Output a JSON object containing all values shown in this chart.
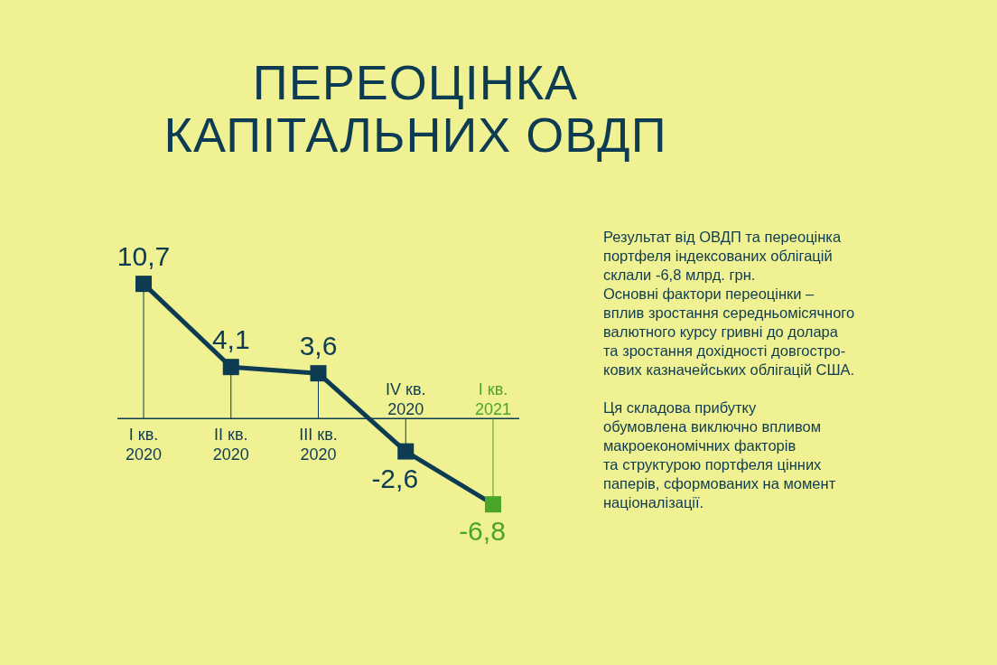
{
  "chart_data": {
    "type": "line",
    "title": "ПЕРЕОЦІНКА\nКАПІТАЛЬНИХ ОВДП",
    "categories": [
      "I кв. 2020",
      "II кв. 2020",
      "III кв. 2020",
      "IV кв. 2020",
      "I кв. 2021"
    ],
    "series": [
      {
        "color": "#0d3b52",
        "values": [
          10.7,
          4.1,
          3.6,
          -2.6,
          -6.8
        ],
        "value_labels": [
          "10,7",
          "4,1",
          "3,6",
          "-2,6",
          "-6,8"
        ],
        "colors": [
          "#0d3b52",
          "#0d3b52",
          "#0d3b52",
          "#0d3b52",
          "#4aa52a"
        ]
      }
    ],
    "marker": "square",
    "annotations": [
      "Результат від ОВДП та переоцінка\nпортфеля індексованих облігацій\nсклали  -6,8 млрд. грн.\nОсновні фактори переоцінки –\nвплив зростання середньомісячного\nвалютного курсу гривні до долара\nта зростання дохідності довгостро-\nкових казначейських облігацій США.",
      "Ця складова прибутку\nобумовлена виключно впливом\nмакроекономічних факторів\nта структурою портфеля цінних\nпаперів, сформованих на момент\nнаціоналізації."
    ]
  }
}
